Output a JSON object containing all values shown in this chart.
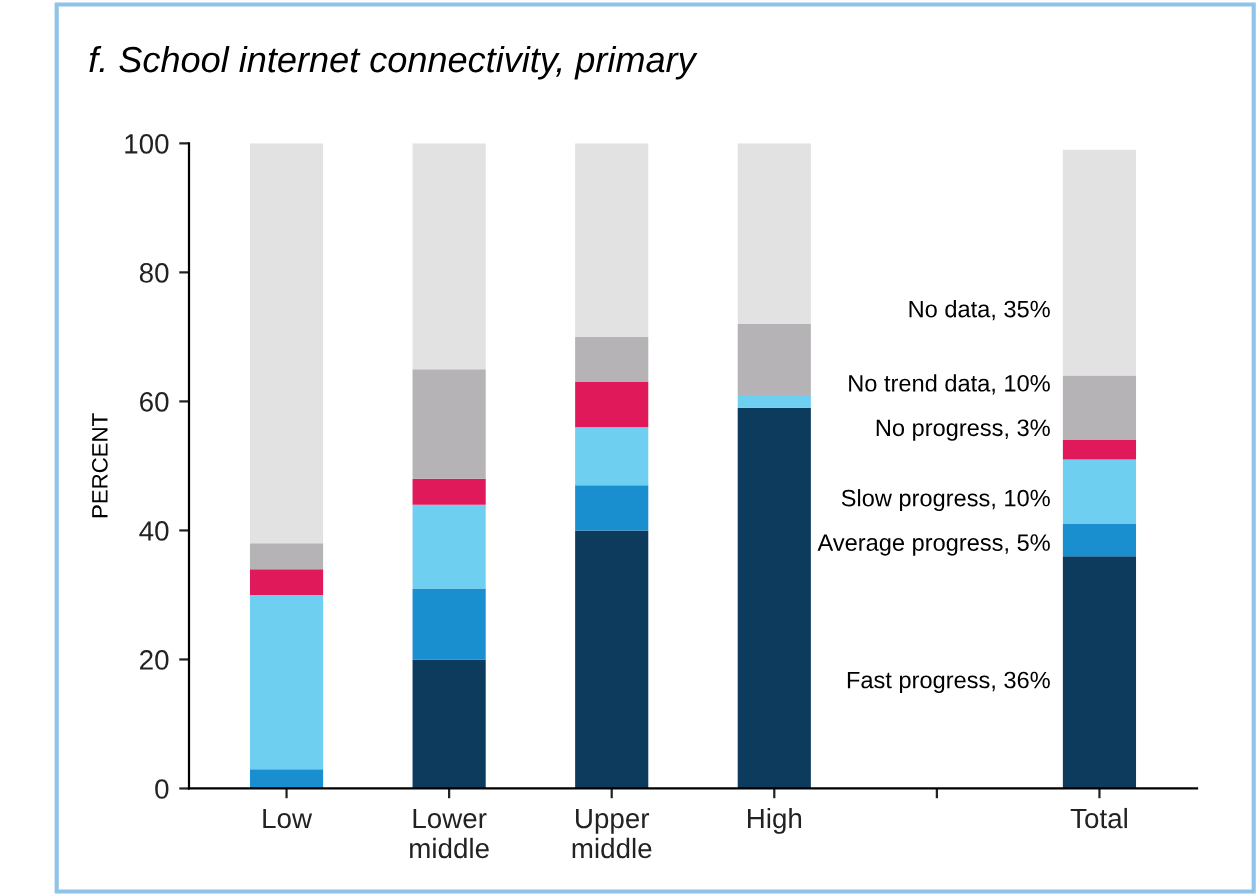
{
  "chart_data": {
    "type": "bar",
    "title": "f. School internet connectivity, primary",
    "ylabel": "PERCENT",
    "categories": [
      "Low",
      "Lower middle",
      "Upper middle",
      "High",
      null,
      "Total"
    ],
    "stacked": true,
    "ylim": [
      0,
      100
    ],
    "yticks": [
      0,
      20,
      40,
      60,
      80,
      100
    ],
    "grid": false,
    "series": [
      {
        "color": "#0d3b5e",
        "values": [
          0,
          20,
          40,
          59,
          null,
          36
        ]
      },
      {
        "color": "#1a8fd0",
        "values": [
          3,
          11,
          7,
          0,
          null,
          5
        ]
      },
      {
        "color": "#6fcff0",
        "values": [
          27,
          13,
          9,
          2,
          null,
          10
        ]
      },
      {
        "color": "#e0195a",
        "values": [
          4,
          4,
          7,
          0,
          null,
          3
        ]
      },
      {
        "color": "#b5b3b5",
        "values": [
          4,
          17,
          7,
          11,
          null,
          10
        ]
      },
      {
        "color": "#e3e2e3",
        "values": [
          62,
          35,
          30,
          28,
          null,
          35
        ]
      }
    ],
    "annotations": [
      "No data, 35%",
      "No trend data, 10%",
      "No progress, 3%",
      "Slow progress, 10%",
      "Average progress, 5%",
      "Fast progress, 36%"
    ]
  }
}
